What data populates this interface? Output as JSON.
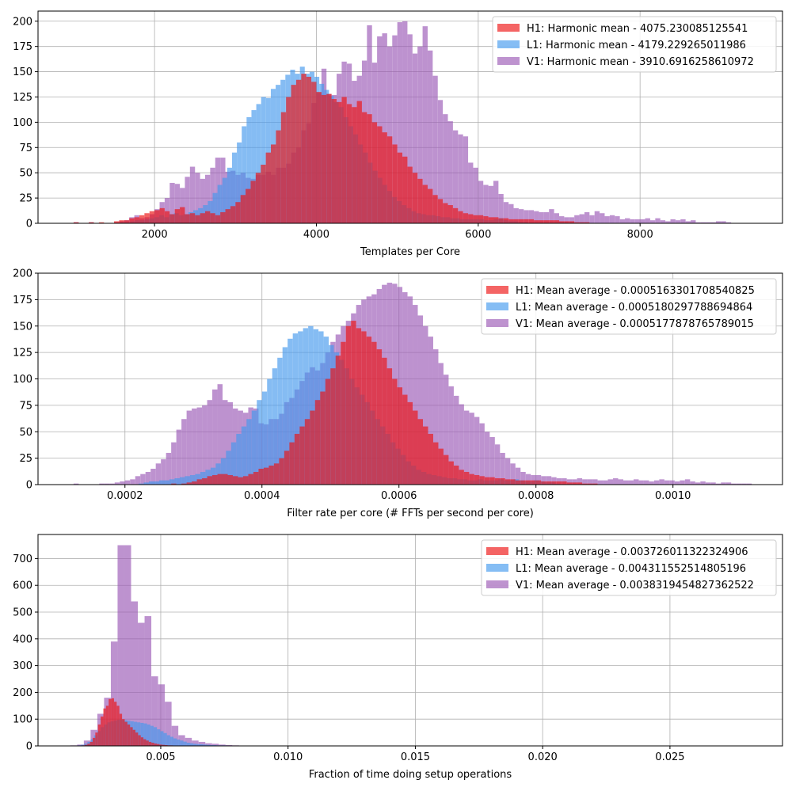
{
  "colors": {
    "H1": "#ee1111",
    "L1": "#4499ee",
    "V1": "#9b59b6",
    "grid": "#b0b0b0"
  },
  "chart_data": [
    {
      "type": "histogram",
      "xlabel": "Templates per Core",
      "xlim": [
        560,
        9760
      ],
      "ylim": [
        0,
        210
      ],
      "xticks": [
        2000,
        4000,
        6000,
        8000
      ],
      "yticks": [
        0,
        25,
        50,
        75,
        100,
        125,
        150,
        175,
        200
      ],
      "xtick_labels": [
        "2000",
        "4000",
        "6000",
        "8000"
      ],
      "ytick_labels": [
        "0",
        "25",
        "50",
        "75",
        "100",
        "125",
        "150",
        "175",
        "200"
      ],
      "grid": true,
      "legend_position": "upper right",
      "legend": [
        "H1: Harmonic mean  - 4075.230085125541",
        "L1: Harmonic mean  - 4179.229265011986",
        "V1: Harmonic mean  - 3910.6916258610972"
      ],
      "series": [
        {
          "detector": "V1",
          "bin_start": 1000,
          "bin_width": 62.5,
          "counts": [
            1,
            0,
            0,
            1,
            0,
            0,
            0,
            0,
            1,
            2,
            3,
            6,
            8,
            5,
            6,
            9,
            14,
            21,
            25,
            40,
            39,
            35,
            46,
            56,
            50,
            44,
            48,
            55,
            65,
            65,
            51,
            52,
            48,
            50,
            45,
            44,
            48,
            48,
            51,
            48,
            55,
            55,
            59,
            70,
            75,
            92,
            99,
            119,
            129,
            153,
            128,
            127,
            148,
            160,
            158,
            141,
            146,
            161,
            196,
            159,
            185,
            188,
            175,
            186,
            199,
            200,
            187,
            168,
            175,
            195,
            171,
            146,
            122,
            108,
            101,
            92,
            88,
            86,
            60,
            55,
            42,
            38,
            37,
            42,
            29,
            21,
            19,
            15,
            14,
            13,
            13,
            12,
            11,
            11,
            14,
            10,
            7,
            6,
            6,
            8,
            9,
            11,
            8,
            12,
            10,
            7,
            8,
            7,
            4,
            5,
            4,
            4,
            4,
            5,
            3,
            5,
            3,
            2,
            4,
            3,
            4,
            2,
            3,
            1,
            1,
            1,
            1,
            2,
            2,
            1
          ]
        },
        {
          "detector": "L1",
          "bin_start": 1580,
          "bin_width": 59.9,
          "counts": [
            1,
            1,
            2,
            3,
            3,
            4,
            5,
            6,
            8,
            6,
            9,
            10,
            8,
            9,
            11,
            13,
            15,
            18,
            22,
            30,
            38,
            45,
            55,
            70,
            80,
            96,
            105,
            112,
            118,
            125,
            124,
            133,
            137,
            142,
            147,
            152,
            148,
            155,
            148,
            150,
            145,
            138,
            132,
            126,
            120,
            115,
            105,
            96,
            88,
            78,
            70,
            60,
            52,
            45,
            38,
            32,
            26,
            22,
            18,
            15,
            12,
            10,
            9,
            8,
            8,
            7,
            6,
            6,
            5,
            5,
            4,
            4,
            4,
            4,
            4,
            3,
            3,
            4,
            5,
            3,
            2,
            2,
            1,
            1
          ]
        },
        {
          "detector": "H1",
          "bin_start": 1000,
          "bin_width": 62.5,
          "counts": [
            1,
            0,
            0,
            1,
            0,
            1,
            0,
            0,
            2,
            3,
            3,
            5,
            6,
            8,
            10,
            12,
            13,
            15,
            12,
            9,
            14,
            16,
            9,
            10,
            8,
            10,
            12,
            10,
            8,
            11,
            14,
            17,
            21,
            28,
            34,
            42,
            50,
            58,
            70,
            78,
            92,
            110,
            125,
            137,
            142,
            148,
            145,
            140,
            130,
            127,
            128,
            123,
            120,
            125,
            118,
            115,
            121,
            110,
            108,
            100,
            96,
            90,
            86,
            78,
            70,
            66,
            56,
            50,
            44,
            38,
            34,
            28,
            24,
            20,
            18,
            15,
            12,
            10,
            9,
            8,
            8,
            7,
            6,
            6,
            5,
            5,
            4,
            4,
            4,
            4,
            4,
            3,
            3,
            3,
            3,
            3,
            2,
            2,
            2,
            1,
            1,
            1
          ]
        }
      ]
    },
    {
      "type": "histogram",
      "xlabel": "Filter rate per core (# FFTs per second per core)",
      "xlim": [
        7.31e-05,
        0.0011599
      ],
      "ylim": [
        0,
        200
      ],
      "xticks": [
        0.0002,
        0.0004,
        0.0006,
        0.0008,
        0.001
      ],
      "yticks": [
        0,
        25,
        50,
        75,
        100,
        125,
        150,
        175,
        200
      ],
      "xtick_labels": [
        "0.0002",
        "0.0004",
        "0.0006",
        "0.0008",
        "0.0010"
      ],
      "ytick_labels": [
        "0",
        "25",
        "50",
        "75",
        "100",
        "125",
        "150",
        "175",
        "200"
      ],
      "grid": true,
      "legend_position": "upper right",
      "legend": [
        "H1: Mean average - 0.0005163301708540825",
        "L1: Mean average - 0.0005180297788694864",
        "V1: Mean average - 0.0005177878765789015"
      ],
      "series": [
        {
          "detector": "V1",
          "bin_start": 0.000125,
          "bin_width": 7.5e-06,
          "counts": [
            1,
            0,
            0,
            0,
            0,
            1,
            1,
            1,
            2,
            3,
            4,
            5,
            8,
            10,
            12,
            15,
            20,
            24,
            30,
            40,
            52,
            62,
            70,
            72,
            73,
            75,
            80,
            90,
            95,
            80,
            78,
            72,
            70,
            68,
            73,
            72,
            58,
            57,
            62,
            62,
            67,
            78,
            82,
            90,
            98,
            106,
            111,
            108,
            115,
            125,
            135,
            142,
            150,
            155,
            162,
            170,
            175,
            178,
            180,
            185,
            189,
            191,
            190,
            187,
            182,
            178,
            170,
            160,
            150,
            140,
            128,
            115,
            104,
            93,
            84,
            76,
            70,
            68,
            64,
            58,
            50,
            45,
            38,
            30,
            25,
            20,
            16,
            12,
            10,
            9,
            9,
            8,
            8,
            7,
            6,
            6,
            5,
            5,
            6,
            5,
            5,
            5,
            4,
            4,
            5,
            6,
            5,
            4,
            4,
            5,
            4,
            4,
            3,
            4,
            5,
            4,
            4,
            3,
            4,
            5,
            3,
            2,
            3,
            2,
            2,
            1,
            2,
            2,
            1,
            1,
            1,
            1
          ]
        },
        {
          "detector": "L1",
          "bin_start": 0.00022,
          "bin_width": 7.5e-06,
          "counts": [
            1,
            2,
            3,
            3,
            4,
            4,
            5,
            6,
            7,
            8,
            9,
            10,
            12,
            14,
            16,
            20,
            25,
            32,
            40,
            48,
            55,
            62,
            70,
            80,
            88,
            100,
            110,
            120,
            130,
            138,
            143,
            145,
            148,
            150,
            147,
            145,
            140,
            132,
            125,
            118,
            110,
            100,
            92,
            85,
            78,
            70,
            62,
            55,
            48,
            40,
            34,
            28,
            22,
            18,
            14,
            12,
            10,
            9,
            8,
            7,
            6,
            6,
            5,
            5,
            4,
            4,
            5,
            4,
            4,
            4,
            5,
            4,
            4,
            5,
            4,
            3,
            3,
            4,
            3,
            2,
            2,
            1
          ]
        },
        {
          "detector": "H1",
          "bin_start": 0.000125,
          "bin_width": 7.5e-06,
          "counts": [
            0,
            0,
            0,
            0,
            0,
            0,
            0,
            0,
            0,
            0,
            0,
            0,
            0,
            0,
            0,
            0,
            0,
            0,
            0,
            1,
            0,
            1,
            2,
            3,
            5,
            6,
            8,
            9,
            10,
            10,
            9,
            8,
            7,
            8,
            10,
            12,
            15,
            16,
            18,
            20,
            25,
            32,
            40,
            48,
            55,
            62,
            70,
            80,
            88,
            100,
            110,
            122,
            135,
            150,
            155,
            148,
            145,
            140,
            135,
            128,
            120,
            110,
            100,
            92,
            85,
            78,
            70,
            62,
            55,
            48,
            40,
            34,
            28,
            22,
            18,
            14,
            12,
            10,
            9,
            8,
            7,
            7,
            6,
            6,
            5,
            5,
            4,
            4,
            4,
            4,
            4,
            3,
            3,
            3,
            3,
            3,
            2,
            2,
            2,
            1,
            1,
            1
          ]
        }
      ]
    },
    {
      "type": "histogram",
      "xlabel": "Fraction of time doing setup operations",
      "xlim": [
        0.00018,
        0.02942
      ],
      "ylim": [
        0,
        790
      ],
      "xticks": [
        0.005,
        0.01,
        0.015,
        0.02,
        0.025
      ],
      "yticks": [
        0,
        100,
        200,
        300,
        400,
        500,
        600,
        700
      ],
      "xtick_labels": [
        "0.005",
        "0.010",
        "0.015",
        "0.020",
        "0.025"
      ],
      "ytick_labels": [
        "0",
        "100",
        "200",
        "300",
        "400",
        "500",
        "600",
        "700"
      ],
      "grid": true,
      "legend_position": "upper right",
      "legend": [
        "H1: Mean average - 0.003726011322324906",
        "L1: Mean average - 0.004311552514805196",
        "V1: Mean average - 0.0038319454827362522"
      ],
      "series": [
        {
          "detector": "V1",
          "bin_start": 0.00145,
          "bin_width": 0.000265,
          "counts": [
            2,
            5,
            20,
            60,
            120,
            180,
            390,
            750,
            750,
            540,
            460,
            485,
            260,
            230,
            165,
            75,
            40,
            30,
            20,
            15,
            10,
            8,
            5,
            3,
            2,
            1,
            1,
            1,
            1,
            1,
            0,
            0,
            0,
            0,
            0,
            0,
            0,
            0,
            0,
            0,
            0,
            0,
            0,
            0,
            0,
            0,
            0,
            0,
            0,
            0,
            0,
            0,
            0,
            0,
            0,
            0,
            0,
            0,
            0,
            0,
            0,
            0,
            0,
            0,
            0,
            0,
            0,
            0,
            0,
            0,
            0,
            0,
            0,
            0,
            0,
            0,
            0,
            0,
            0,
            0,
            0,
            0,
            0,
            0,
            0,
            0,
            0,
            0,
            0,
            0,
            0,
            0,
            0,
            0,
            0,
            0,
            0,
            0,
            0,
            0,
            1
          ]
        },
        {
          "detector": "L1",
          "bin_start": 0.0016,
          "bin_width": 0.00013,
          "counts": [
            1,
            2,
            4,
            8,
            15,
            25,
            40,
            55,
            70,
            80,
            88,
            92,
            95,
            98,
            98,
            96,
            94,
            92,
            90,
            88,
            86,
            84,
            80,
            75,
            70,
            62,
            55,
            48,
            40,
            34,
            28,
            24,
            20,
            16,
            12,
            10,
            8,
            7,
            6,
            5,
            4,
            3,
            3,
            2,
            2,
            2,
            1,
            1,
            1,
            1
          ]
        },
        {
          "detector": "H1",
          "bin_start": 0.0018,
          "bin_width": 0.000105,
          "counts": [
            1,
            2,
            4,
            8,
            15,
            30,
            50,
            80,
            110,
            140,
            150,
            175,
            178,
            165,
            150,
            120,
            100,
            90,
            80,
            70,
            60,
            50,
            40,
            32,
            25,
            20,
            15,
            12,
            9,
            7,
            5,
            4,
            3,
            2,
            2,
            1,
            1,
            1
          ]
        }
      ]
    }
  ]
}
